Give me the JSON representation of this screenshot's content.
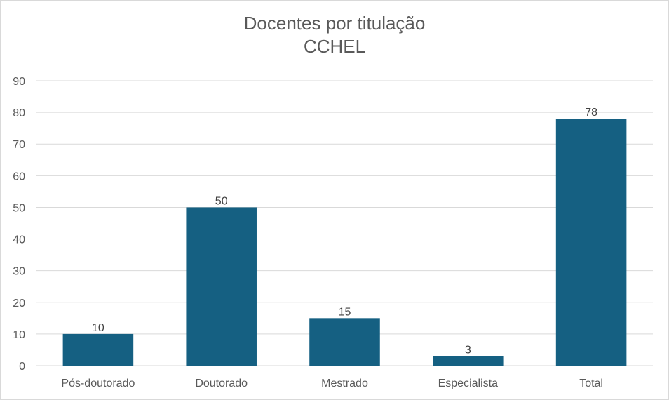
{
  "chart_data": {
    "type": "bar",
    "title": "Docentes por titulação",
    "subtitle": "CCHEL",
    "categories": [
      "Pós-doutorado",
      "Doutorado",
      "Mestrado",
      "Especialista",
      "Total"
    ],
    "values": [
      10,
      50,
      15,
      3,
      78
    ],
    "data_labels": [
      "10",
      "50",
      "15",
      "3",
      "78"
    ],
    "xlabel": "",
    "ylabel": "",
    "ylim": [
      0,
      90
    ],
    "y_ticks": [
      0,
      10,
      20,
      30,
      40,
      50,
      60,
      70,
      80,
      90
    ],
    "grid": true,
    "legend": "none",
    "colors": {
      "bar": "#156082",
      "gridline": "#d9d9d9",
      "text": "#595959"
    }
  }
}
